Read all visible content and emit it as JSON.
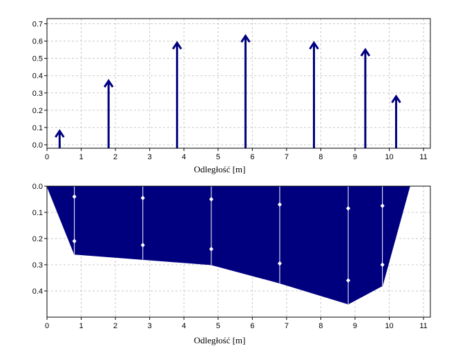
{
  "chart_data": [
    {
      "type": "stem",
      "xlabel": "Odległość [m]",
      "xlim": [
        0,
        11.2
      ],
      "ylim": [
        -0.02,
        0.73
      ],
      "xticks": [
        0,
        1,
        2,
        3,
        4,
        5,
        6,
        7,
        8,
        9,
        10,
        11
      ],
      "yticks": [
        0.0,
        0.1,
        0.2,
        0.3,
        0.4,
        0.5,
        0.6,
        0.7
      ],
      "ytick_labels": [
        "0.0",
        "0.1",
        "0.2",
        "0.3",
        "0.4",
        "0.5",
        "0.6",
        "0.7"
      ],
      "grid": true,
      "color": "#00007f",
      "points": [
        {
          "x": 0.37,
          "y": 0.08
        },
        {
          "x": 1.8,
          "y": 0.37
        },
        {
          "x": 3.8,
          "y": 0.59
        },
        {
          "x": 5.8,
          "y": 0.63
        },
        {
          "x": 7.8,
          "y": 0.59
        },
        {
          "x": 9.3,
          "y": 0.55
        },
        {
          "x": 10.2,
          "y": 0.28
        }
      ]
    },
    {
      "type": "area",
      "xlabel": "Odległość [m]",
      "xlim": [
        0,
        11.2
      ],
      "ylim": [
        0.0,
        0.5
      ],
      "y_inverted": true,
      "xticks": [
        0,
        1,
        2,
        3,
        4,
        5,
        6,
        7,
        8,
        9,
        10,
        11
      ],
      "yticks": [
        0.0,
        0.1,
        0.2,
        0.3,
        0.4
      ],
      "ytick_labels": [
        "0.0",
        "0.1",
        "0.2",
        "0.3",
        "0.4"
      ],
      "grid": true,
      "fill_color": "#00007f",
      "bed_profile": [
        {
          "x": 0.0,
          "y": 0.0
        },
        {
          "x": 0.8,
          "y": 0.26
        },
        {
          "x": 2.8,
          "y": 0.28
        },
        {
          "x": 4.8,
          "y": 0.3
        },
        {
          "x": 6.8,
          "y": 0.37
        },
        {
          "x": 8.8,
          "y": 0.45
        },
        {
          "x": 9.8,
          "y": 0.38
        },
        {
          "x": 10.6,
          "y": 0.0
        }
      ],
      "verticals": [
        {
          "x": 0.8,
          "depth": 0.26,
          "points": [
            0.04,
            0.21
          ]
        },
        {
          "x": 2.8,
          "depth": 0.28,
          "points": [
            0.045,
            0.225
          ]
        },
        {
          "x": 4.8,
          "depth": 0.3,
          "points": [
            0.05,
            0.24
          ]
        },
        {
          "x": 6.8,
          "depth": 0.37,
          "points": [
            0.07,
            0.295
          ]
        },
        {
          "x": 8.8,
          "depth": 0.45,
          "points": [
            0.085,
            0.36
          ]
        },
        {
          "x": 9.8,
          "depth": 0.38,
          "points": [
            0.075,
            0.3
          ]
        }
      ]
    }
  ]
}
